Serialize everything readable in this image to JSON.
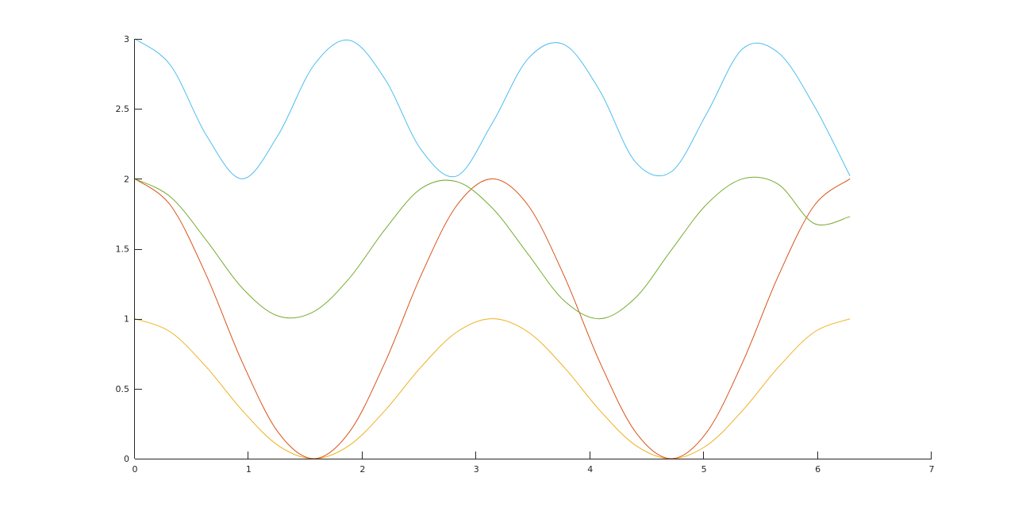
{
  "chart_data": {
    "type": "line",
    "title": "",
    "xlabel": "",
    "ylabel": "",
    "xlim": [
      0,
      7
    ],
    "ylim": [
      0,
      3
    ],
    "grid": false,
    "x_ticks": [
      0,
      1,
      2,
      3,
      4,
      5,
      6,
      7
    ],
    "x_tick_labels": [
      "0",
      "1",
      "2",
      "3",
      "4",
      "5",
      "6",
      "7"
    ],
    "y_ticks": [
      0,
      0.5,
      1,
      1.5,
      2,
      2.5,
      3
    ],
    "y_tick_labels": [
      "0",
      "0.5",
      "1",
      "1.5",
      "2",
      "2.5",
      "3"
    ],
    "x_range": [
      0,
      6.2832
    ],
    "series": [
      {
        "color": "#EDB120",
        "x": [
          0,
          0.3142,
          0.6283,
          0.9425,
          1.2566,
          1.5708,
          1.885,
          2.1991,
          2.5133,
          2.8274,
          3.1416,
          3.4558,
          3.7699,
          4.0841,
          4.3982,
          4.7124,
          5.0265,
          5.3407,
          5.6549,
          5.969,
          6.2832
        ],
        "y": [
          1,
          0.9045,
          0.6545,
          0.3455,
          0.0955,
          0,
          0.0955,
          0.3455,
          0.6545,
          0.9045,
          1,
          0.9045,
          0.6545,
          0.3455,
          0.0955,
          0,
          0.0955,
          0.3455,
          0.6545,
          0.9045,
          1
        ]
      },
      {
        "color": "#D95319",
        "x": [
          0,
          0.3142,
          0.6283,
          0.9425,
          1.2566,
          1.5708,
          1.885,
          2.1991,
          2.5133,
          2.8274,
          3.1416,
          3.4558,
          3.7699,
          4.0841,
          4.3982,
          4.7124,
          5.0265,
          5.3407,
          5.6549,
          5.969,
          6.2832
        ],
        "y": [
          2,
          1.809,
          1.309,
          0.691,
          0.191,
          0,
          0.191,
          0.691,
          1.309,
          1.809,
          2,
          1.809,
          1.309,
          0.691,
          0.191,
          0,
          0.191,
          0.691,
          1.309,
          1.809,
          2
        ]
      },
      {
        "color": "#77AC30",
        "x": [
          0,
          0.3142,
          0.6283,
          0.9425,
          1.2566,
          1.5708,
          1.885,
          2.1991,
          2.5133,
          2.8274,
          3.1416,
          3.4558,
          3.7699,
          4.0841,
          4.3982,
          4.7124,
          5.0265,
          5.3407,
          5.6549,
          5.969,
          6.2832
        ],
        "y": [
          2,
          1.87,
          1.56,
          1.22,
          1.02,
          1.05,
          1.29,
          1.64,
          1.93,
          1.98,
          1.79,
          1.46,
          1.13,
          1.0,
          1.15,
          1.49,
          1.82,
          2.0,
          1.96,
          1.68,
          1.73
        ]
      },
      {
        "color": "#4DBEEE",
        "x": [
          0,
          0.3142,
          0.6283,
          0.9425,
          1.2566,
          1.5708,
          1.885,
          2.1991,
          2.5133,
          2.8274,
          3.1416,
          3.4558,
          3.7699,
          4.0841,
          4.3982,
          4.7124,
          5.0265,
          5.3407,
          5.6549,
          5.969,
          6.2832
        ],
        "y": [
          3,
          2.81,
          2.31,
          2.0,
          2.31,
          2.81,
          2.99,
          2.71,
          2.21,
          2.02,
          2.4,
          2.86,
          2.96,
          2.63,
          2.12,
          2.05,
          2.47,
          2.93,
          2.9,
          2.52,
          2.02
        ]
      }
    ]
  }
}
